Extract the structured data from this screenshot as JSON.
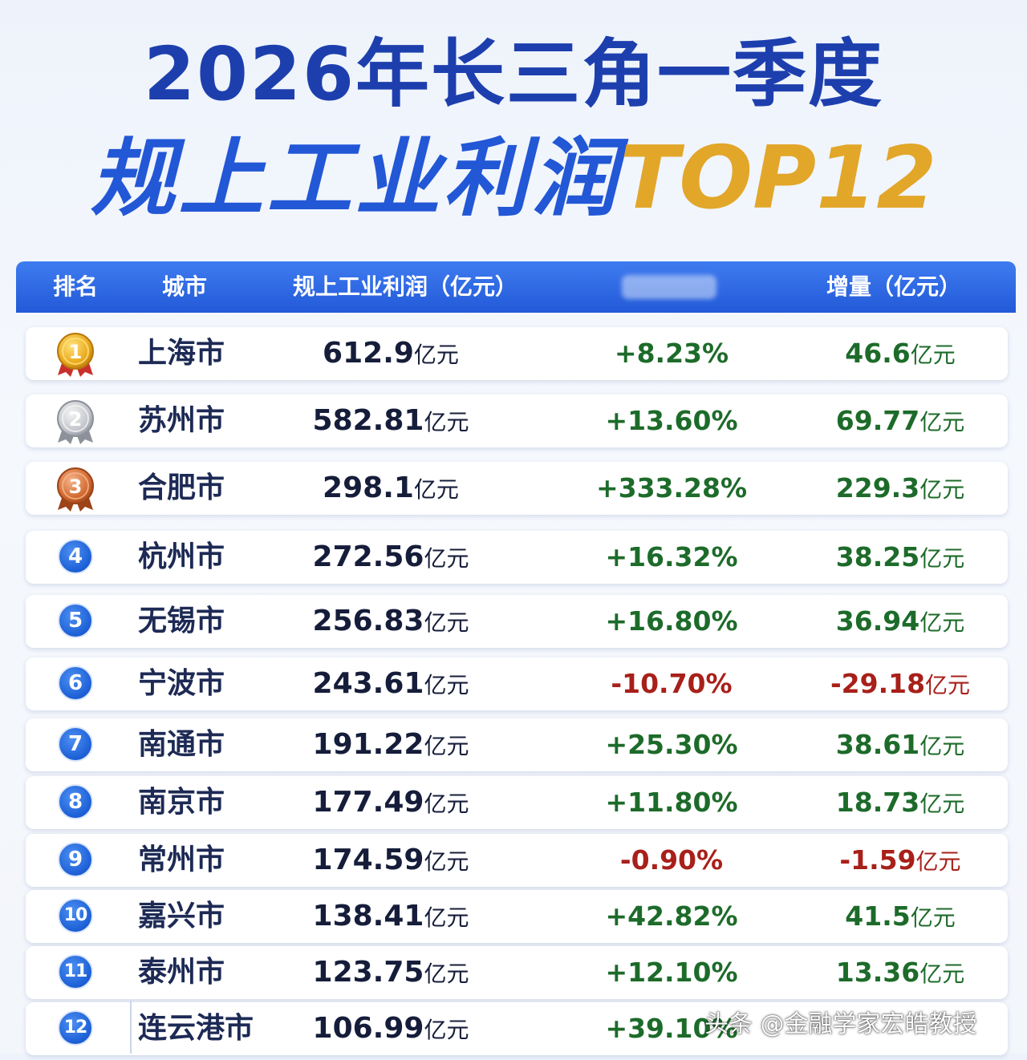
{
  "title_line1": "2026年长三角一季度",
  "title_line2_a": "规上工业利润",
  "title_line2_b": "TOP12",
  "header": {
    "rank": "排名",
    "city": "城市",
    "profit": "规上工业利润（亿元）",
    "increase": "增量（亿元）"
  },
  "unit": "亿元",
  "rows": [
    {
      "rank": "1",
      "city": "上海市",
      "profit": "612.9",
      "growth": "+8.23%",
      "increase": "46.6",
      "trend": "up"
    },
    {
      "rank": "2",
      "city": "苏州市",
      "profit": "582.81",
      "growth": "+13.60%",
      "increase": "69.77",
      "trend": "up"
    },
    {
      "rank": "3",
      "city": "合肥市",
      "profit": "298.1",
      "growth": "+333.28%",
      "increase": "229.3",
      "trend": "up"
    },
    {
      "rank": "4",
      "city": "杭州市",
      "profit": "272.56",
      "growth": "+16.32%",
      "increase": "38.25",
      "trend": "up"
    },
    {
      "rank": "5",
      "city": "无锡市",
      "profit": "256.83",
      "growth": "+16.80%",
      "increase": "36.94",
      "trend": "up"
    },
    {
      "rank": "6",
      "city": "宁波市",
      "profit": "243.61",
      "growth": "-10.70%",
      "increase": "-29.18",
      "trend": "down"
    },
    {
      "rank": "7",
      "city": "南通市",
      "profit": "191.22",
      "growth": "+25.30%",
      "increase": "38.61",
      "trend": "up"
    },
    {
      "rank": "8",
      "city": "南京市",
      "profit": "177.49",
      "growth": "+11.80%",
      "increase": "18.73",
      "trend": "up"
    },
    {
      "rank": "9",
      "city": "常州市",
      "profit": "174.59",
      "growth": "-0.90%",
      "increase": "-1.59",
      "trend": "down"
    },
    {
      "rank": "10",
      "city": "嘉兴市",
      "profit": "138.41",
      "growth": "+42.82%",
      "increase": "41.5",
      "trend": "up"
    },
    {
      "rank": "11",
      "city": "泰州市",
      "profit": "123.75",
      "growth": "+12.10%",
      "increase": "13.36",
      "trend": "up"
    },
    {
      "rank": "12",
      "city": "连云港市",
      "profit": "106.99",
      "growth": "+39.10%",
      "increase": "",
      "trend": "up"
    }
  ],
  "watermark": "头条 @金融学家宏皓教授",
  "colors": {
    "title_blue": "#1d3fae",
    "title_gold": "#e2a629",
    "header_blue": "#2259d8",
    "positive": "#1d6b2a",
    "negative": "#a8201a"
  }
}
